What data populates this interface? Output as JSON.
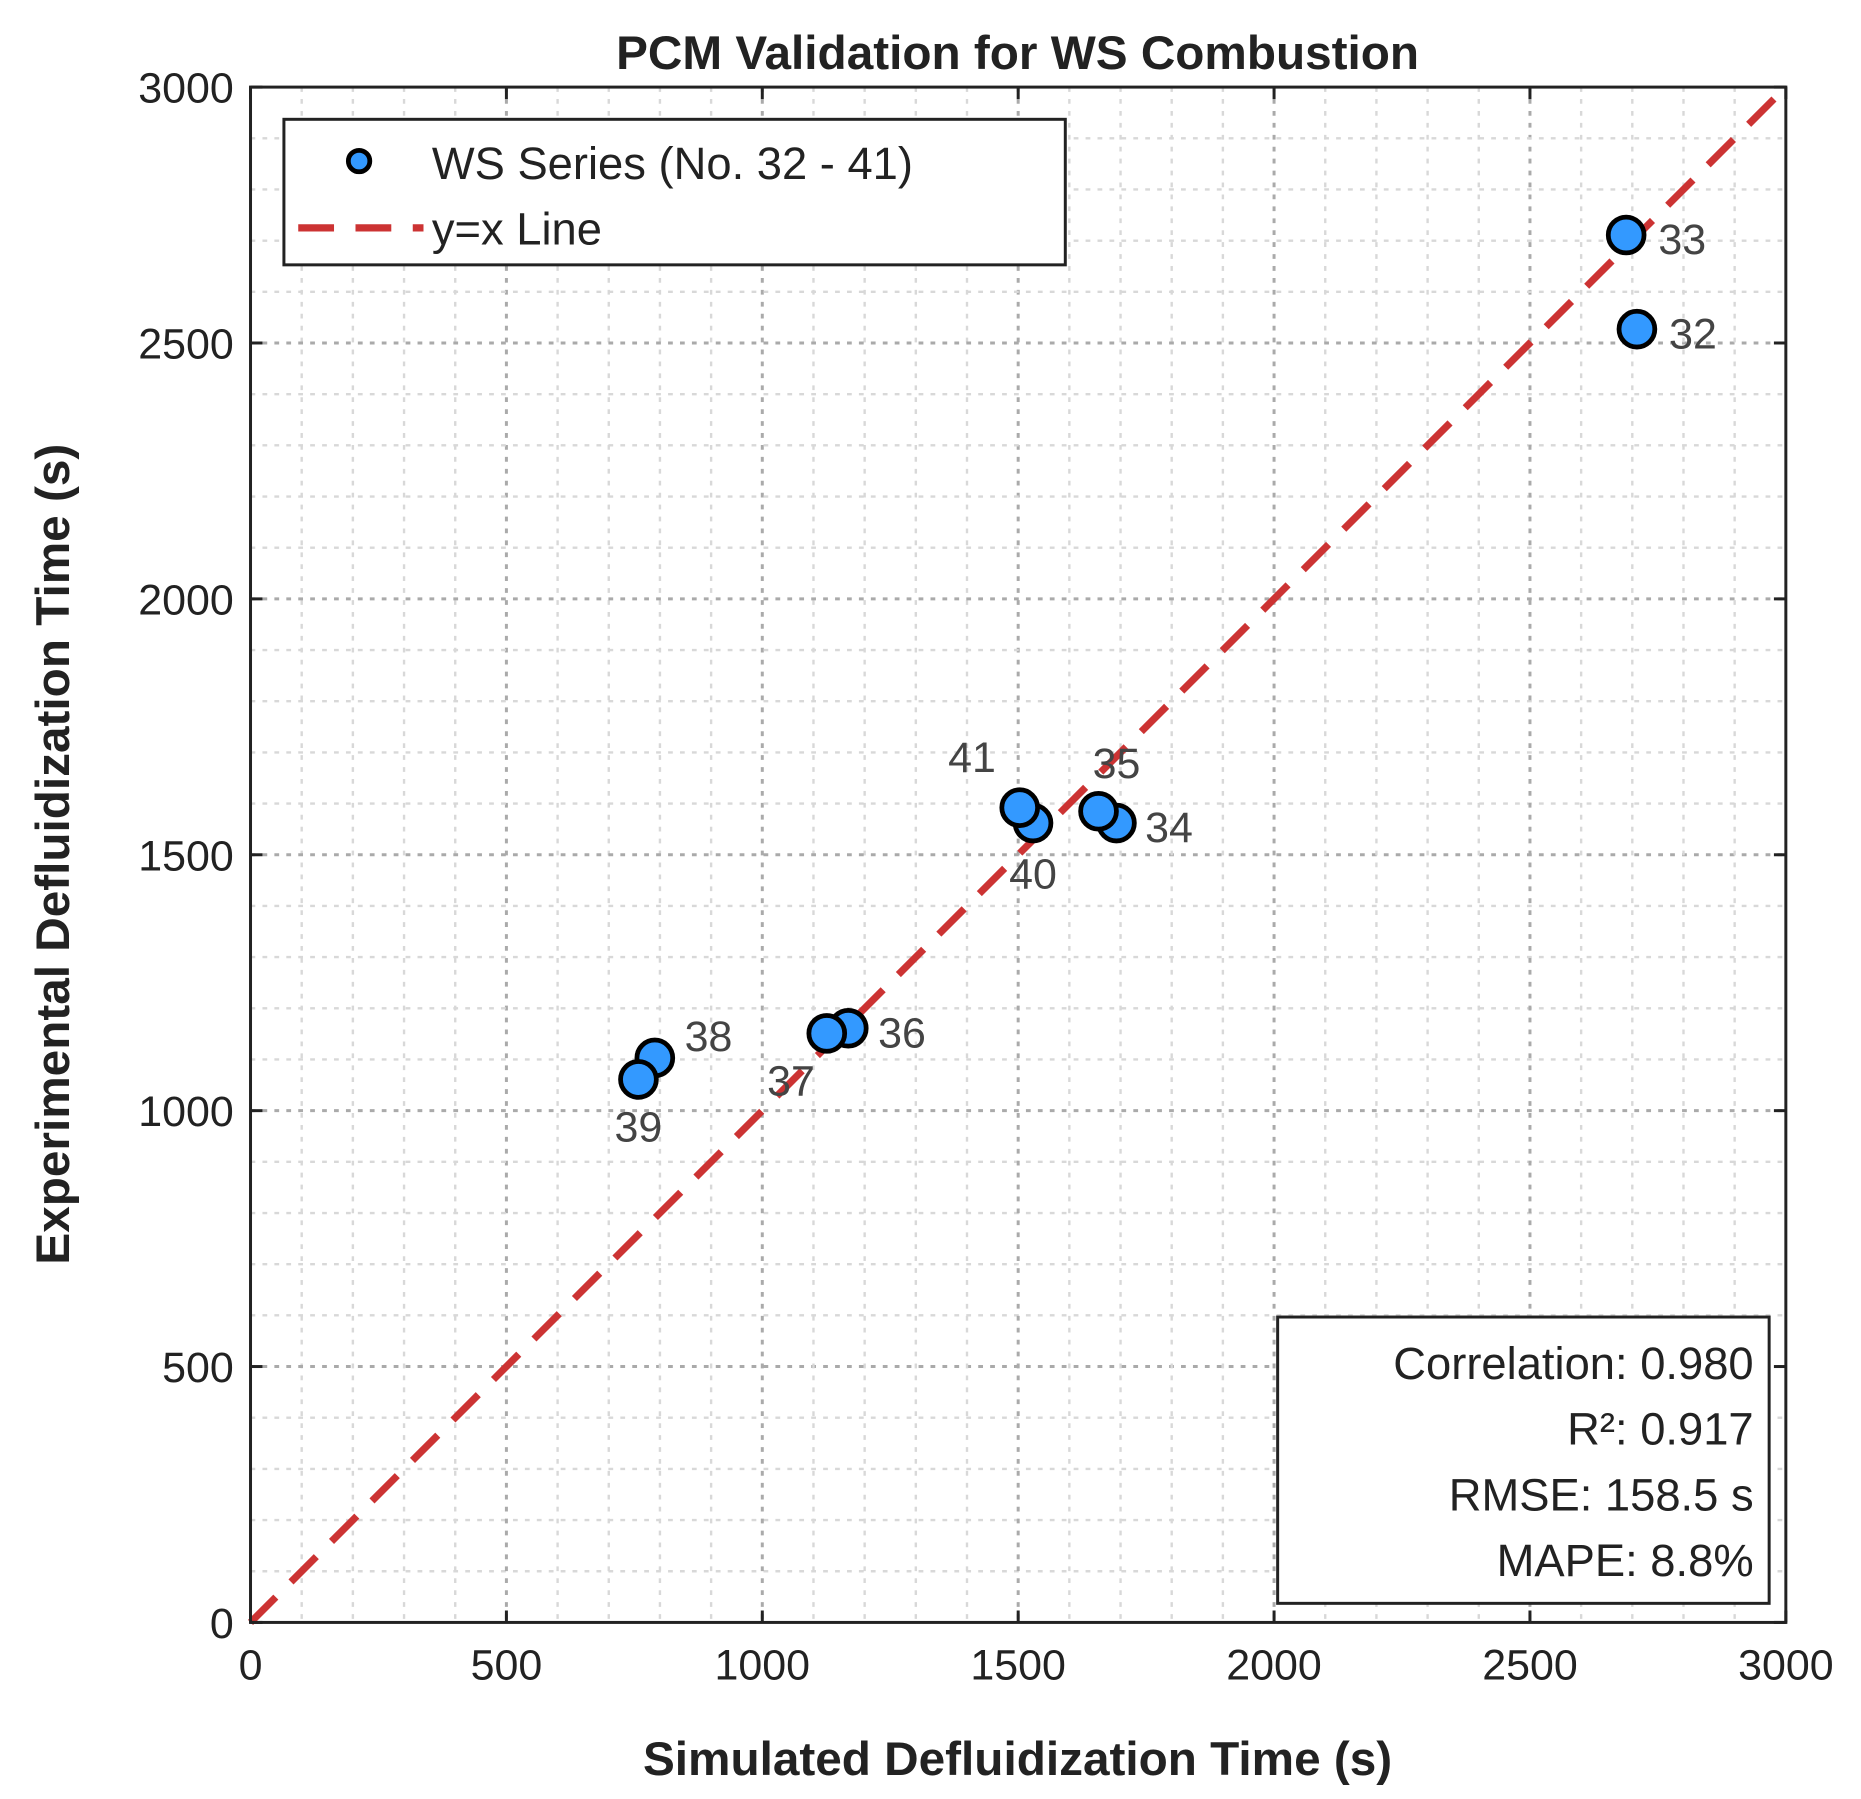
{
  "chart_data": {
    "type": "scatter",
    "title": "PCM Validation for WS Combustion",
    "xlabel": "Simulated Defluidization Time (s)",
    "ylabel": "Experimental Defluidization Time (s)",
    "xlim": [
      0,
      3000
    ],
    "ylim": [
      0,
      3000
    ],
    "xticks": [
      0,
      500,
      1000,
      1500,
      2000,
      2500,
      3000
    ],
    "yticks": [
      0,
      500,
      1000,
      1500,
      2000,
      2500,
      3000
    ],
    "grid": true,
    "legend_placement": "top-left",
    "series": [
      {
        "name": "WS Series (No. 32 - 41)",
        "color": "#3399ff",
        "points": [
          {
            "label": "32",
            "x": 2709,
            "y": 2527
          },
          {
            "label": "33",
            "x": 2688,
            "y": 2711
          },
          {
            "label": "34",
            "x": 1692,
            "y": 1562
          },
          {
            "label": "35",
            "x": 1657,
            "y": 1585
          },
          {
            "label": "36",
            "x": 1168,
            "y": 1161
          },
          {
            "label": "37",
            "x": 1126,
            "y": 1151
          },
          {
            "label": "38",
            "x": 790,
            "y": 1103
          },
          {
            "label": "39",
            "x": 758,
            "y": 1061
          },
          {
            "label": "40",
            "x": 1529,
            "y": 1562
          },
          {
            "label": "41",
            "x": 1503,
            "y": 1592
          }
        ]
      },
      {
        "name": "y=x Line",
        "color": "#cc3333",
        "line": [
          [
            0,
            0
          ],
          [
            3000,
            3000
          ]
        ]
      }
    ],
    "stats": [
      "Correlation: 0.980",
      "R²: 0.917",
      "RMSE: 158.5 s",
      "MAPE: 8.8%"
    ]
  }
}
